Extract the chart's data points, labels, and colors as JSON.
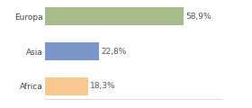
{
  "categories": [
    "Africa",
    "Asia",
    "Europa"
  ],
  "values": [
    18.3,
    22.8,
    58.9
  ],
  "bar_colors": [
    "#f5c990",
    "#7b96c8",
    "#a8bb8a"
  ],
  "labels": [
    "18,3%",
    "22,8%",
    "58,9%"
  ],
  "background_color": "#ffffff",
  "xlim": [
    0,
    75
  ],
  "label_fontsize": 6.5,
  "tick_fontsize": 6.5,
  "bar_height": 0.5
}
